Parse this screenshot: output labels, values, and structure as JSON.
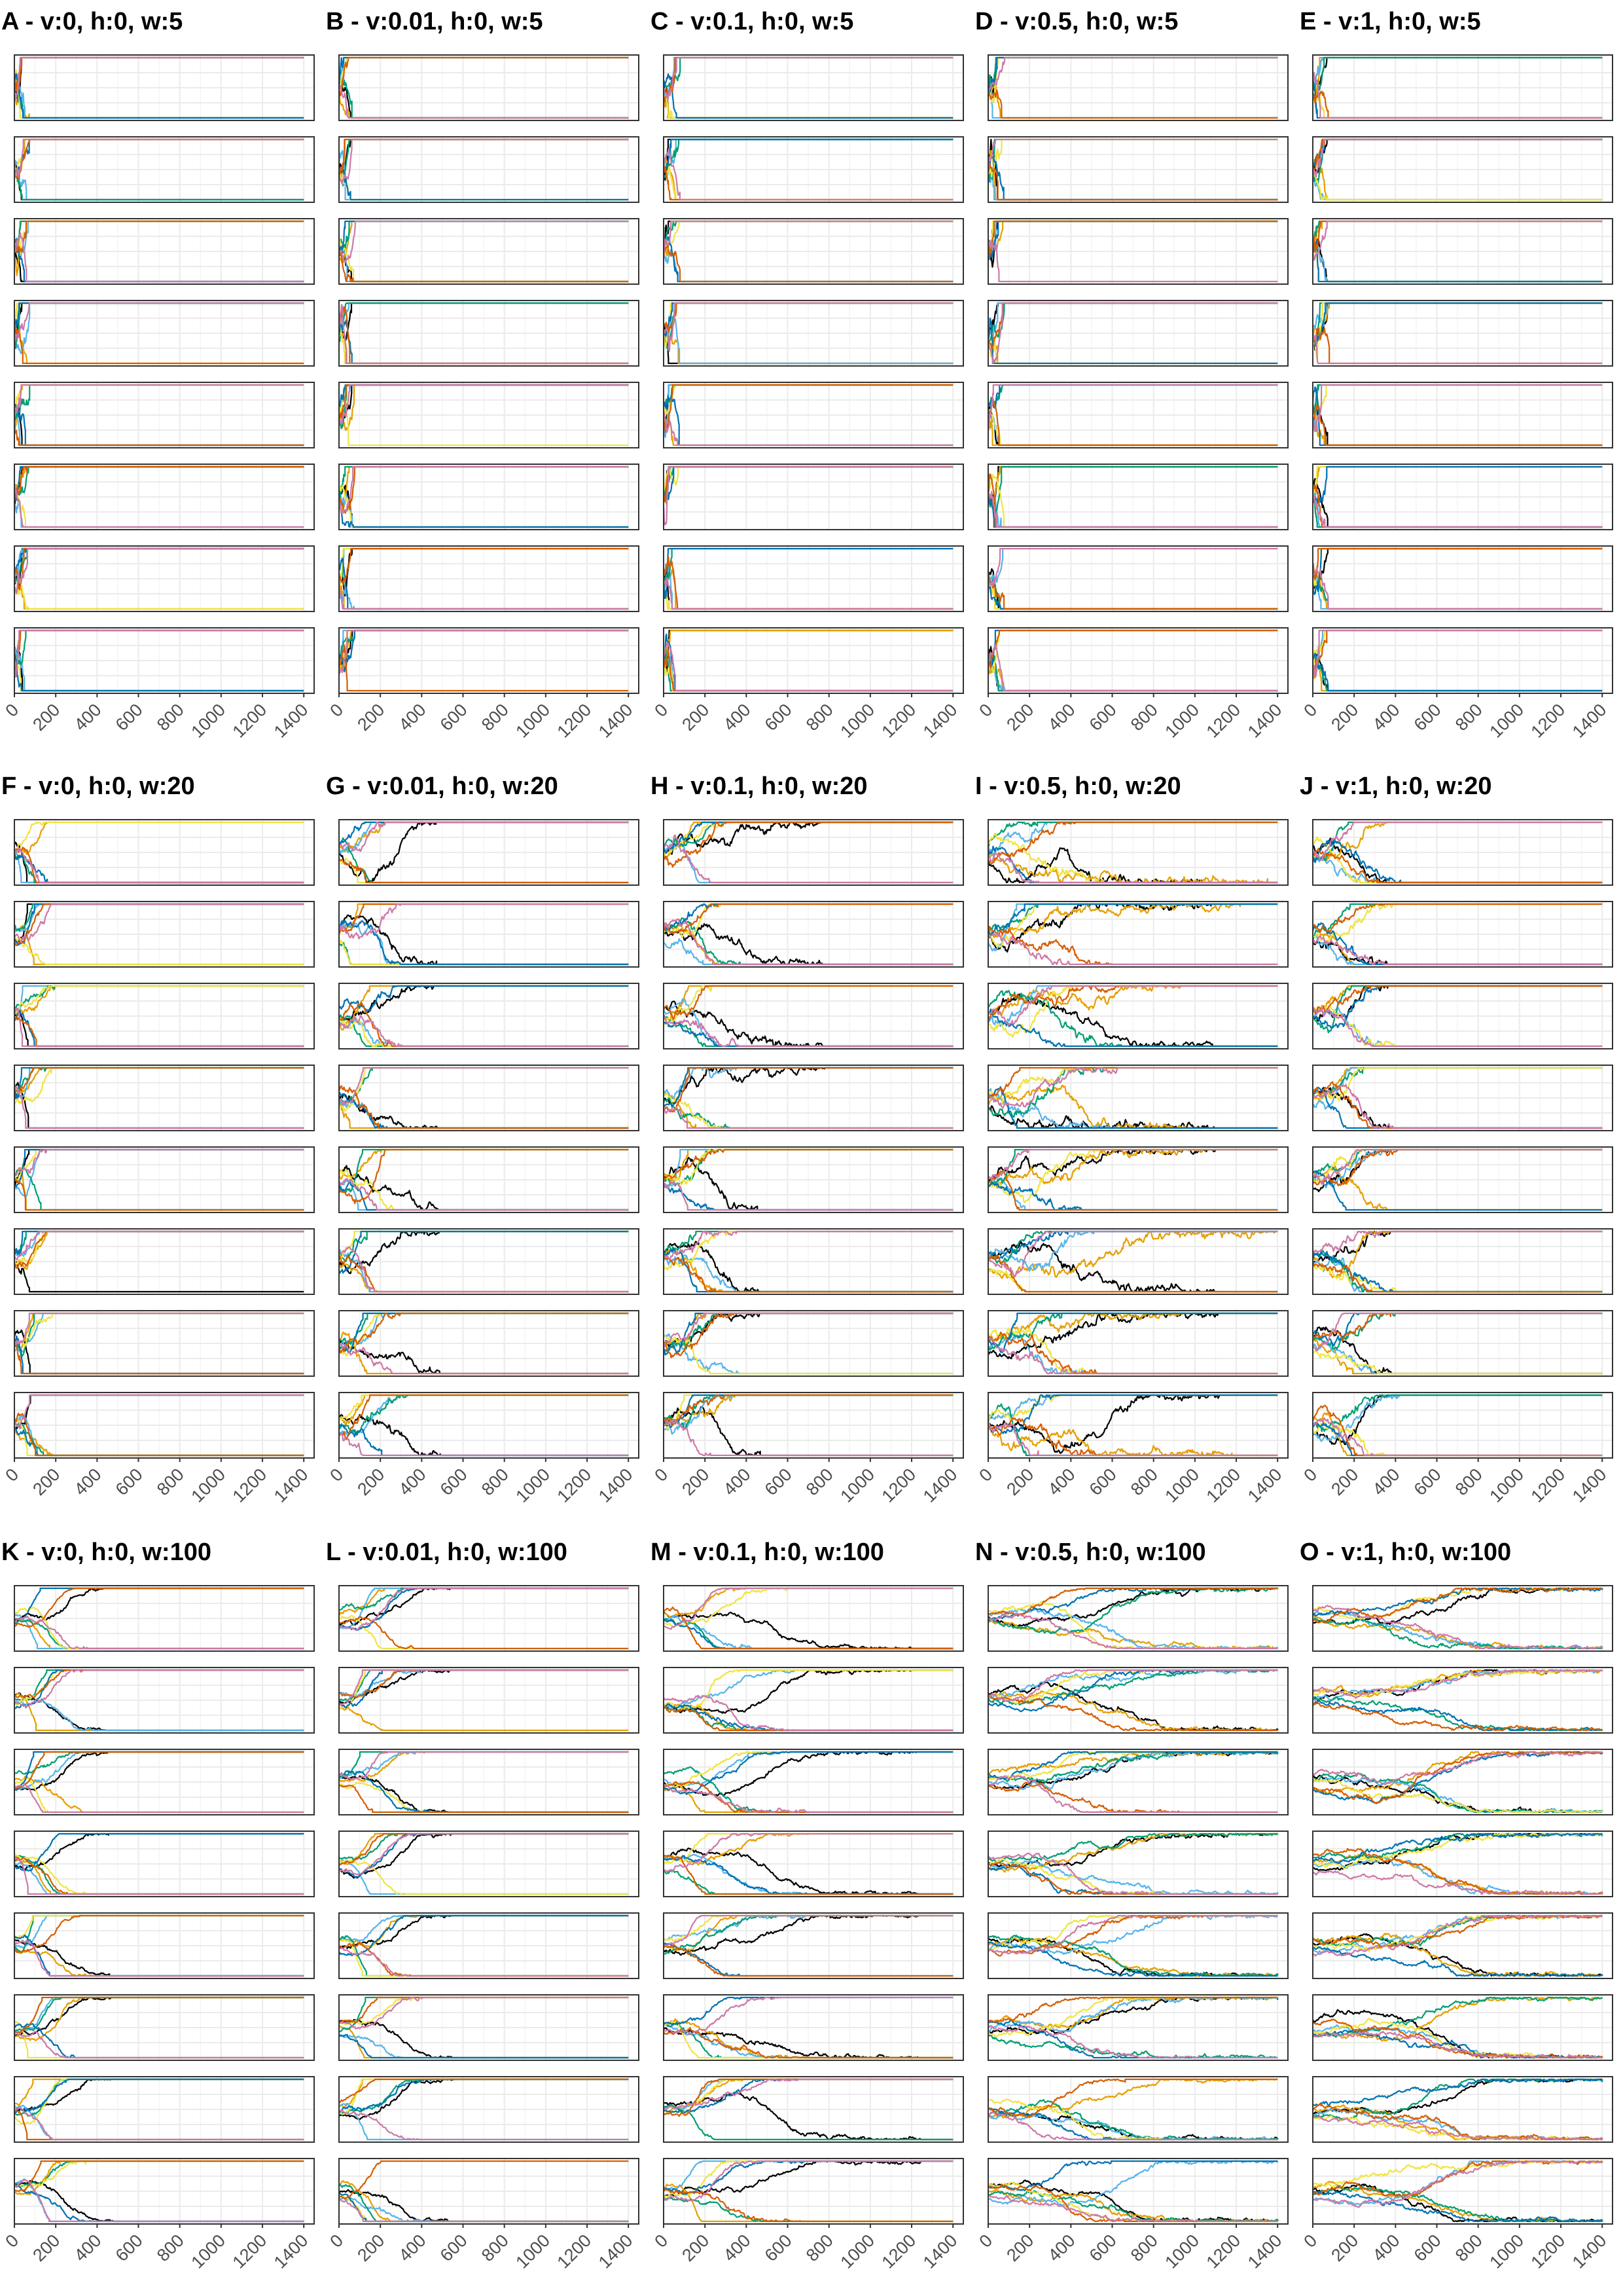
{
  "figure": {
    "layout": {
      "rows": 3,
      "cols": 5,
      "facets_per_panel": 8
    },
    "series_colors": [
      "#000000",
      "#E69F00",
      "#56B4E9",
      "#009E73",
      "#F0E442",
      "#0072B2",
      "#D55E00",
      "#CC79A7"
    ],
    "gridline_color": "#ebebeb",
    "frame_color": "#333333"
  },
  "chart_data": [
    {
      "id": "A",
      "title": "A - v:0, h:0, w:5",
      "type": "line",
      "v": 0,
      "h": 0,
      "w": 5,
      "xlim": [
        0,
        1450
      ],
      "ylim": [
        0,
        1
      ],
      "xticks": [
        0,
        200,
        400,
        600,
        800,
        1000,
        1200,
        1400
      ],
      "xtick_labels": [
        "0",
        "200",
        "400",
        "600",
        "800",
        "1000",
        "1200",
        "1400"
      ],
      "grid": true,
      "legend": "none",
      "facets": 8,
      "lines_per_facet": 8,
      "fixation_time_range": [
        20,
        75
      ],
      "long_lived_lines": 0,
      "long_lived_range": [
        0,
        0
      ]
    },
    {
      "id": "B",
      "title": "B - v:0.01, h:0, w:5",
      "type": "line",
      "v": 0.01,
      "h": 0,
      "w": 5,
      "xlim": [
        0,
        1450
      ],
      "ylim": [
        0,
        1
      ],
      "xticks": [
        0,
        200,
        400,
        600,
        800,
        1000,
        1200,
        1400
      ],
      "xtick_labels": [
        "0",
        "200",
        "400",
        "600",
        "800",
        "1000",
        "1200",
        "1400"
      ],
      "grid": true,
      "legend": "none",
      "facets": 8,
      "lines_per_facet": 8,
      "fixation_time_range": [
        20,
        80
      ],
      "long_lived_lines": 0,
      "long_lived_range": [
        0,
        0
      ]
    },
    {
      "id": "C",
      "title": "C - v:0.1, h:0, w:5",
      "type": "line",
      "v": 0.1,
      "h": 0,
      "w": 5,
      "xlim": [
        0,
        1450
      ],
      "ylim": [
        0,
        1
      ],
      "xticks": [
        0,
        200,
        400,
        600,
        800,
        1000,
        1200,
        1400
      ],
      "xtick_labels": [
        "0",
        "200",
        "400",
        "600",
        "800",
        "1000",
        "1200",
        "1400"
      ],
      "grid": true,
      "legend": "none",
      "facets": 8,
      "lines_per_facet": 8,
      "fixation_time_range": [
        20,
        80
      ],
      "long_lived_lines": 0,
      "long_lived_range": [
        0,
        0
      ]
    },
    {
      "id": "D",
      "title": "D - v:0.5, h:0, w:5",
      "type": "line",
      "v": 0.5,
      "h": 0,
      "w": 5,
      "xlim": [
        0,
        1450
      ],
      "ylim": [
        0,
        1
      ],
      "xticks": [
        0,
        200,
        400,
        600,
        800,
        1000,
        1200,
        1400
      ],
      "xtick_labels": [
        "0",
        "200",
        "400",
        "600",
        "800",
        "1000",
        "1200",
        "1400"
      ],
      "grid": true,
      "legend": "none",
      "facets": 8,
      "lines_per_facet": 8,
      "fixation_time_range": [
        20,
        80
      ],
      "long_lived_lines": 0,
      "long_lived_range": [
        0,
        0
      ]
    },
    {
      "id": "E",
      "title": "E - v:1, h:0, w:5",
      "type": "line",
      "v": 1,
      "h": 0,
      "w": 5,
      "xlim": [
        0,
        1450
      ],
      "ylim": [
        0,
        1
      ],
      "xticks": [
        0,
        200,
        400,
        600,
        800,
        1000,
        1200,
        1400
      ],
      "xtick_labels": [
        "0",
        "200",
        "400",
        "600",
        "800",
        "1000",
        "1200",
        "1400"
      ],
      "grid": true,
      "legend": "none",
      "facets": 8,
      "lines_per_facet": 8,
      "fixation_time_range": [
        20,
        80
      ],
      "long_lived_lines": 0,
      "long_lived_range": [
        0,
        0
      ]
    },
    {
      "id": "F",
      "title": "F - v:0, h:0, w:20",
      "type": "line",
      "v": 0,
      "h": 0,
      "w": 20,
      "xlim": [
        0,
        1450
      ],
      "ylim": [
        0,
        1
      ],
      "xticks": [
        0,
        200,
        400,
        600,
        800,
        1000,
        1200,
        1400
      ],
      "xtick_labels": [
        "0",
        "200",
        "400",
        "600",
        "800",
        "1000",
        "1200",
        "1400"
      ],
      "grid": true,
      "legend": "none",
      "facets": 8,
      "lines_per_facet": 8,
      "fixation_time_range": [
        30,
        200
      ],
      "long_lived_lines": 0,
      "long_lived_range": [
        0,
        0
      ]
    },
    {
      "id": "G",
      "title": "G - v:0.01, h:0, w:20",
      "type": "line",
      "v": 0.01,
      "h": 0,
      "w": 20,
      "xlim": [
        0,
        1450
      ],
      "ylim": [
        0,
        1
      ],
      "xticks": [
        0,
        200,
        400,
        600,
        800,
        1000,
        1200,
        1400
      ],
      "xtick_labels": [
        "0",
        "200",
        "400",
        "600",
        "800",
        "1000",
        "1200",
        "1400"
      ],
      "grid": true,
      "legend": "none",
      "facets": 8,
      "lines_per_facet": 8,
      "fixation_time_range": [
        50,
        330
      ],
      "long_lived_lines": 1,
      "long_lived_range": [
        350,
        560
      ]
    },
    {
      "id": "H",
      "title": "H - v:0.1, h:0, w:20",
      "type": "line",
      "v": 0.1,
      "h": 0,
      "w": 20,
      "xlim": [
        0,
        1450
      ],
      "ylim": [
        0,
        1
      ],
      "xticks": [
        0,
        200,
        400,
        600,
        800,
        1000,
        1200,
        1400
      ],
      "xtick_labels": [
        "0",
        "200",
        "400",
        "600",
        "800",
        "1000",
        "1200",
        "1400"
      ],
      "grid": true,
      "legend": "none",
      "facets": 8,
      "lines_per_facet": 8,
      "fixation_time_range": [
        80,
        380
      ],
      "long_lived_lines": 1,
      "long_lived_range": [
        450,
        780
      ]
    },
    {
      "id": "I",
      "title": "I - v:0.5, h:0, w:20",
      "type": "line",
      "v": 0.5,
      "h": 0,
      "w": 20,
      "xlim": [
        0,
        1450
      ],
      "ylim": [
        0,
        1
      ],
      "xticks": [
        0,
        200,
        400,
        600,
        800,
        1000,
        1200,
        1400
      ],
      "xtick_labels": [
        "0",
        "200",
        "400",
        "600",
        "800",
        "1000",
        "1200",
        "1400"
      ],
      "grid": true,
      "legend": "none",
      "facets": 8,
      "lines_per_facet": 8,
      "fixation_time_range": [
        120,
        650
      ],
      "long_lived_lines": 2,
      "long_lived_range": [
        900,
        1400
      ]
    },
    {
      "id": "J",
      "title": "J - v:1, h:0, w:20",
      "type": "line",
      "v": 1,
      "h": 0,
      "w": 20,
      "xlim": [
        0,
        1450
      ],
      "ylim": [
        0,
        1
      ],
      "xticks": [
        0,
        200,
        400,
        600,
        800,
        1000,
        1200,
        1400
      ],
      "xtick_labels": [
        "0",
        "200",
        "400",
        "600",
        "800",
        "1000",
        "1200",
        "1400"
      ],
      "grid": true,
      "legend": "none",
      "facets": 8,
      "lines_per_facet": 8,
      "fixation_time_range": [
        150,
        430
      ],
      "long_lived_lines": 0,
      "long_lived_range": [
        0,
        0
      ]
    },
    {
      "id": "K",
      "title": "K - v:0, h:0, w:100",
      "type": "line",
      "v": 0,
      "h": 0,
      "w": 100,
      "xlim": [
        0,
        1450
      ],
      "ylim": [
        0,
        1
      ],
      "xticks": [
        0,
        200,
        400,
        600,
        800,
        1000,
        1200,
        1400
      ],
      "xtick_labels": [
        "0",
        "200",
        "400",
        "600",
        "800",
        "1000",
        "1200",
        "1400"
      ],
      "grid": true,
      "legend": "none",
      "facets": 8,
      "lines_per_facet": 8,
      "fixation_time_range": [
        60,
        380
      ],
      "long_lived_lines": 1,
      "long_lived_range": [
        400,
        750
      ]
    },
    {
      "id": "L",
      "title": "L - v:0.01, h:0, w:100",
      "type": "line",
      "v": 0.01,
      "h": 0,
      "w": 100,
      "xlim": [
        0,
        1450
      ],
      "ylim": [
        0,
        1
      ],
      "xticks": [
        0,
        200,
        400,
        600,
        800,
        1000,
        1200,
        1400
      ],
      "xtick_labels": [
        "0",
        "200",
        "400",
        "600",
        "800",
        "1000",
        "1200",
        "1400"
      ],
      "grid": true,
      "legend": "none",
      "facets": 8,
      "lines_per_facet": 8,
      "fixation_time_range": [
        100,
        450
      ],
      "long_lived_lines": 1,
      "long_lived_range": [
        450,
        620
      ]
    },
    {
      "id": "M",
      "title": "M - v:0.1, h:0, w:100",
      "type": "line",
      "v": 0.1,
      "h": 0,
      "w": 100,
      "xlim": [
        0,
        1450
      ],
      "ylim": [
        0,
        1
      ],
      "xticks": [
        0,
        200,
        400,
        600,
        800,
        1000,
        1200,
        1400
      ],
      "xtick_labels": [
        "0",
        "200",
        "400",
        "600",
        "800",
        "1000",
        "1200",
        "1400"
      ],
      "grid": true,
      "legend": "none",
      "facets": 8,
      "lines_per_facet": 8,
      "fixation_time_range": [
        150,
        700
      ],
      "long_lived_lines": 1,
      "long_lived_range": [
        900,
        1250
      ]
    },
    {
      "id": "N",
      "title": "N - v:0.5, h:0, w:100",
      "type": "line",
      "v": 0.5,
      "h": 0,
      "w": 100,
      "xlim": [
        0,
        1450
      ],
      "ylim": [
        0,
        1
      ],
      "xticks": [
        0,
        200,
        400,
        600,
        800,
        1000,
        1200,
        1400
      ],
      "xtick_labels": [
        "0",
        "200",
        "400",
        "600",
        "800",
        "1000",
        "1200",
        "1400"
      ],
      "grid": true,
      "legend": "none",
      "facets": 8,
      "lines_per_facet": 8,
      "fixation_time_range": [
        400,
        1100
      ],
      "long_lived_lines": 4,
      "long_lived_range": [
        1400,
        1400
      ]
    },
    {
      "id": "O",
      "title": "O - v:1, h:0, w:100",
      "type": "line",
      "v": 1,
      "h": 0,
      "w": 100,
      "xlim": [
        0,
        1450
      ],
      "ylim": [
        0,
        1
      ],
      "xticks": [
        0,
        200,
        400,
        600,
        800,
        1000,
        1200,
        1400
      ],
      "xtick_labels": [
        "0",
        "200",
        "400",
        "600",
        "800",
        "1000",
        "1200",
        "1400"
      ],
      "grid": true,
      "legend": "none",
      "facets": 8,
      "lines_per_facet": 8,
      "fixation_time_range": [
        800,
        1400
      ],
      "long_lived_lines": 8,
      "long_lived_range": [
        1400,
        1400
      ]
    }
  ]
}
